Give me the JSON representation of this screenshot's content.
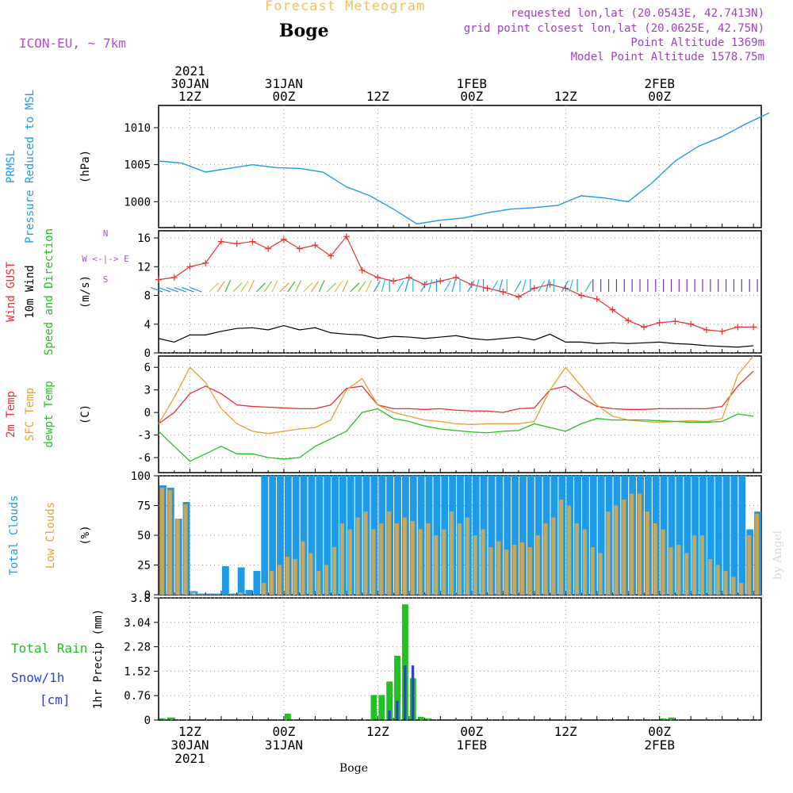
{
  "header": {
    "title": "Forecast Meteogram",
    "station": "Boge",
    "model": "ICON-EU, ~ 7km",
    "requested": "requested lon,lat (20.0543E, 42.7413N)",
    "grid_point": "grid point closest lon,lat (20.0625E, 42.75N)",
    "point_altitude": "Point Altitude 1369m",
    "model_altitude": "Model Point Altitude 1578.75m",
    "watermark": "by Angel"
  },
  "colors": {
    "title": "#f0c060",
    "model": "#b050d0",
    "info": "#a040c0",
    "pressure": "#1e9be8",
    "gust": "#e83030",
    "wind": "#000000",
    "wind_dir": "#22c022",
    "temp": "#e83030",
    "sfc": "#e8a030",
    "dew": "#22c022",
    "clouds": "#1e9be8",
    "low_clouds": "#c8a858",
    "rain": "#22c022",
    "snow": "#3040e0"
  },
  "chart_data": [
    {
      "type": "line",
      "panel": "pressure",
      "ylabel_lines": [
        "PRMSL",
        "Pressure Reduced to MSL"
      ],
      "unit": "(hPa)",
      "ylim": [
        996.5,
        1013
      ],
      "yticks": [
        1000,
        1005,
        1010
      ],
      "x_hours": [
        0,
        3,
        6,
        9,
        12,
        15,
        18,
        21,
        24,
        27,
        30,
        33,
        36,
        39,
        42,
        45,
        48,
        51,
        54,
        57,
        60,
        63,
        66,
        69,
        72,
        75,
        78
      ],
      "series": [
        {
          "name": "PRMSL",
          "values": [
            1005.5,
            1005.2,
            1004.0,
            1004.5,
            1005.0,
            1004.6,
            1004.5,
            1004.0,
            1002.0,
            1000.8,
            999.0,
            997.0,
            997.5,
            997.8,
            998.5,
            999.0,
            999.2,
            999.5,
            1000.8,
            1000.5,
            1000.0,
            1002.5,
            1005.5,
            1007.5,
            1008.8,
            1010.5,
            1012.0
          ]
        }
      ],
      "x_labels": [
        {
          "h": 4,
          "lines": [
            "2021",
            "30JAN",
            "12Z"
          ]
        },
        {
          "h": 16,
          "lines": [
            "31JAN",
            "00Z"
          ]
        },
        {
          "h": 28,
          "lines": [
            "12Z"
          ]
        },
        {
          "h": 40,
          "lines": [
            "1FEB",
            "00Z"
          ]
        },
        {
          "h": 52,
          "lines": [
            "12Z"
          ]
        },
        {
          "h": 64,
          "lines": [
            "2FEB",
            "00Z"
          ]
        }
      ]
    },
    {
      "type": "line",
      "panel": "wind",
      "ylabel_lines": [
        "Wind GUST",
        "10m Wind",
        "Speed and Direction"
      ],
      "unit": "(m/s)",
      "compass": [
        "N",
        "W <-|-> E",
        "S"
      ],
      "ylim": [
        0,
        17
      ],
      "yticks": [
        0,
        4,
        8,
        12,
        16
      ],
      "x_hours": [
        0,
        2,
        4,
        6,
        8,
        10,
        12,
        14,
        16,
        18,
        20,
        22,
        24,
        26,
        28,
        30,
        32,
        34,
        36,
        38,
        40,
        42,
        44,
        46,
        48,
        50,
        52,
        54,
        56,
        58,
        60,
        62,
        64,
        66,
        68,
        70,
        72,
        74,
        76
      ],
      "series": [
        {
          "name": "Wind GUST",
          "values": [
            10.2,
            10.5,
            12,
            12.5,
            15.5,
            15.2,
            15.5,
            14.5,
            15.8,
            14.5,
            15.0,
            13.5,
            16.2,
            11.5,
            10.5,
            10.0,
            10.5,
            9.5,
            10.0,
            10.5,
            9.5,
            9.0,
            8.5,
            7.8,
            9.0,
            9.5,
            9.0,
            8.0,
            7.5,
            6.0,
            4.5,
            3.6,
            4.2,
            4.4,
            4.0,
            3.2,
            3.0,
            3.6,
            3.6
          ]
        },
        {
          "name": "10m Wind",
          "values": [
            2.0,
            1.5,
            2.5,
            2.5,
            3.0,
            3.4,
            3.5,
            3.2,
            3.8,
            3.2,
            3.5,
            2.8,
            2.6,
            2.5,
            2.0,
            2.3,
            2.2,
            2.0,
            2.2,
            2.4,
            2.0,
            1.8,
            2.0,
            2.2,
            1.8,
            2.6,
            1.5,
            1.5,
            1.3,
            1.4,
            1.3,
            1.4,
            1.5,
            1.3,
            1.2,
            1.0,
            0.9,
            0.8,
            1.0
          ]
        }
      ],
      "arrows": {
        "start_h": 0,
        "step_h": 1,
        "count": 77,
        "speed": 8.5
      }
    },
    {
      "type": "line",
      "panel": "temperature",
      "ylabel_lines": [
        "2m Temp",
        "SFC Temp",
        "dewpt Temp"
      ],
      "unit": "(C)",
      "ylim": [
        -8,
        7.5
      ],
      "yticks": [
        -6,
        -3,
        0,
        3,
        6
      ],
      "x_hours": [
        0,
        2,
        4,
        6,
        8,
        10,
        12,
        14,
        16,
        18,
        20,
        22,
        24,
        26,
        28,
        30,
        32,
        34,
        36,
        38,
        40,
        42,
        44,
        46,
        48,
        50,
        52,
        54,
        56,
        58,
        60,
        62,
        64,
        66,
        68,
        70,
        72,
        74,
        76
      ],
      "series": [
        {
          "name": "2m Temp",
          "values": [
            -1.5,
            0,
            2.5,
            3.5,
            2.5,
            1.0,
            0.8,
            0.7,
            0.6,
            0.5,
            0.5,
            1.0,
            3.2,
            3.5,
            1.0,
            0.5,
            0.5,
            0.4,
            0.5,
            0.3,
            0.2,
            0.2,
            0.0,
            0.5,
            0.6,
            3.0,
            3.5,
            2.0,
            0.8,
            0.5,
            0.4,
            0.4,
            0.5,
            0.5,
            0.5,
            0.5,
            0.8,
            3.5,
            5.5
          ]
        },
        {
          "name": "SFC Temp",
          "values": [
            -1.5,
            2.0,
            6.0,
            4.0,
            0.5,
            -1.5,
            -2.5,
            -2.8,
            -2.5,
            -2.2,
            -2.0,
            -1.0,
            3.0,
            4.5,
            1.0,
            0.0,
            -0.5,
            -1.0,
            -1.2,
            -1.5,
            -1.6,
            -1.5,
            -1.5,
            -1.5,
            -1.2,
            3.0,
            6.0,
            3.5,
            1.0,
            -0.5,
            -1.0,
            -1.2,
            -1.3,
            -1.2,
            -1.1,
            -1.2,
            -0.8,
            5.0,
            7.5
          ]
        },
        {
          "name": "dewpt Temp",
          "values": [
            -2.5,
            -4.5,
            -6.5,
            -5.5,
            -4.5,
            -5.5,
            -5.5,
            -6.0,
            -6.2,
            -6.0,
            -4.5,
            -3.5,
            -2.5,
            0.0,
            0.5,
            -0.8,
            -1.2,
            -1.8,
            -2.2,
            -2.4,
            -2.6,
            -2.7,
            -2.5,
            -2.4,
            -1.5,
            -2.0,
            -2.5,
            -1.5,
            -0.8,
            -1.0,
            -1.0,
            -1.0,
            -1.1,
            -1.2,
            -1.3,
            -1.3,
            -1.2,
            -0.2,
            -0.5
          ]
        }
      ]
    },
    {
      "type": "bar",
      "panel": "clouds",
      "ylabel_lines": [
        "Total Clouds",
        "Low Clouds"
      ],
      "unit": "(%)",
      "ylim": [
        0,
        100
      ],
      "yticks": [
        0,
        25,
        50,
        75,
        100
      ],
      "start_h": 0,
      "step_h": 1,
      "series": [
        {
          "name": "Total Clouds",
          "values": [
            92,
            90,
            64,
            78,
            3,
            1,
            1,
            1,
            24,
            1,
            23,
            4,
            20,
            100,
            100,
            100,
            100,
            100,
            100,
            100,
            100,
            100,
            100,
            100,
            100,
            100,
            100,
            100,
            100,
            100,
            100,
            100,
            100,
            100,
            100,
            100,
            100,
            100,
            100,
            100,
            100,
            100,
            100,
            100,
            100,
            100,
            100,
            100,
            100,
            100,
            100,
            100,
            100,
            100,
            100,
            100,
            100,
            100,
            100,
            100,
            100,
            100,
            100,
            100,
            100,
            100,
            100,
            100,
            100,
            100,
            100,
            100,
            100,
            100,
            100,
            55,
            70
          ]
        },
        {
          "name": "Low Clouds",
          "values": [
            90,
            88,
            64,
            76,
            2,
            0,
            0,
            0,
            0,
            0,
            2,
            0,
            0,
            10,
            20,
            25,
            32,
            30,
            45,
            35,
            20,
            25,
            40,
            60,
            55,
            65,
            70,
            55,
            60,
            70,
            60,
            65,
            62,
            55,
            60,
            50,
            55,
            70,
            60,
            65,
            50,
            55,
            40,
            45,
            38,
            42,
            44,
            40,
            50,
            60,
            65,
            80,
            75,
            60,
            55,
            40,
            35,
            70,
            75,
            80,
            85,
            85,
            70,
            60,
            55,
            40,
            42,
            35,
            50,
            50,
            30,
            25,
            20,
            15,
            10,
            50,
            68
          ]
        }
      ]
    },
    {
      "type": "bar",
      "panel": "precip",
      "ylabel_lines": [
        "Total Rain",
        "Snow/1h",
        "[cm]"
      ],
      "unit": "1hr Precip (mm)",
      "ylim": [
        0,
        3.8
      ],
      "yticks": [
        0,
        0.76,
        1.52,
        2.28,
        3.04,
        3.8
      ],
      "ytick_labels": [
        "0",
        "0.76",
        "1.52",
        "2.28",
        "3.04",
        "3.8"
      ],
      "start_h": 0,
      "step_h": 1,
      "series": [
        {
          "name": "Total Rain",
          "values": [
            0.05,
            0.08,
            0,
            0,
            0,
            0,
            0,
            0,
            0,
            0,
            0,
            0,
            0,
            0,
            0,
            0,
            0.2,
            0,
            0,
            0,
            0,
            0,
            0,
            0,
            0,
            0,
            0.02,
            0.78,
            0.78,
            1.2,
            2.0,
            3.6,
            1.3,
            0.1,
            0.05,
            0,
            0,
            0,
            0,
            0,
            0,
            0,
            0,
            0,
            0,
            0,
            0,
            0,
            0,
            0,
            0,
            0,
            0,
            0,
            0,
            0,
            0,
            0,
            0,
            0,
            0,
            0,
            0,
            0,
            0.05,
            0.08,
            0,
            0,
            0,
            0,
            0,
            0,
            0,
            0,
            0,
            0,
            0
          ]
        },
        {
          "name": "Snow/1h",
          "values": [
            0,
            0,
            0,
            0,
            0,
            0,
            0,
            0,
            0,
            0,
            0,
            0,
            0,
            0,
            0,
            0,
            0,
            0,
            0,
            0,
            0,
            0,
            0,
            0,
            0,
            0,
            0,
            0,
            0,
            0.3,
            0.6,
            1.7,
            1.7,
            0,
            0,
            0,
            0,
            0,
            0,
            0,
            0,
            0,
            0,
            0,
            0,
            0,
            0,
            0,
            0,
            0,
            0,
            0,
            0,
            0,
            0,
            0,
            0,
            0,
            0,
            0,
            0,
            0,
            0,
            0,
            0,
            0,
            0,
            0,
            0,
            0,
            0,
            0,
            0,
            0,
            0,
            0,
            0
          ]
        }
      ],
      "x_labels_bottom": [
        {
          "h": 4,
          "lines": [
            "12Z",
            "30JAN",
            "2021"
          ]
        },
        {
          "h": 16,
          "lines": [
            "00Z",
            "31JAN"
          ]
        },
        {
          "h": 28,
          "lines": [
            "12Z"
          ]
        },
        {
          "h": 40,
          "lines": [
            "00Z",
            "1FEB"
          ]
        },
        {
          "h": 52,
          "lines": [
            "12Z"
          ]
        },
        {
          "h": 64,
          "lines": [
            "00Z",
            "2FEB"
          ]
        }
      ],
      "xlabel": "Boge"
    }
  ]
}
